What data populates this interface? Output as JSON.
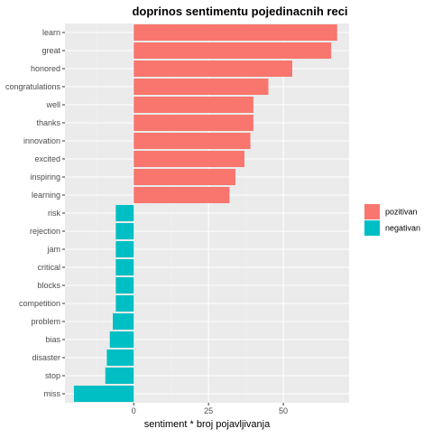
{
  "chart_data": {
    "type": "bar",
    "orientation": "horizontal",
    "title": "doprinos sentimentu pojedinacnih reci",
    "xlabel": "sentiment * broj pojavljivanja",
    "ylabel": "",
    "xlim": [
      -23,
      72
    ],
    "x_ticks": [
      0,
      25,
      50
    ],
    "x_tick_labels": [
      "0",
      "25",
      "50"
    ],
    "grid": true,
    "legend_position": "right",
    "categories": [
      "learn",
      "great",
      "honored",
      "congratulations",
      "well",
      "thanks",
      "innovation",
      "excited",
      "inspiring",
      "learning",
      "risk",
      "rejection",
      "jam",
      "critical",
      "blocks",
      "competition",
      "problem",
      "bias",
      "disaster",
      "stop",
      "miss"
    ],
    "values": [
      68,
      66,
      53,
      45,
      40,
      40,
      39,
      37,
      34,
      32,
      -6,
      -6,
      -6,
      -6,
      -6,
      -6,
      -7,
      -8,
      -9,
      -9.5,
      -20
    ],
    "groups": [
      "pozitivan",
      "pozitivan",
      "pozitivan",
      "pozitivan",
      "pozitivan",
      "pozitivan",
      "pozitivan",
      "pozitivan",
      "pozitivan",
      "pozitivan",
      "negativan",
      "negativan",
      "negativan",
      "negativan",
      "negativan",
      "negativan",
      "negativan",
      "negativan",
      "negativan",
      "negativan",
      "negativan"
    ],
    "legend": [
      {
        "label": "pozitivan",
        "color": "#F8766D"
      },
      {
        "label": "negativan",
        "color": "#00BFC4"
      }
    ],
    "colors": {
      "panel_background": "#EBEBEB",
      "grid": "#FFFFFF"
    }
  }
}
